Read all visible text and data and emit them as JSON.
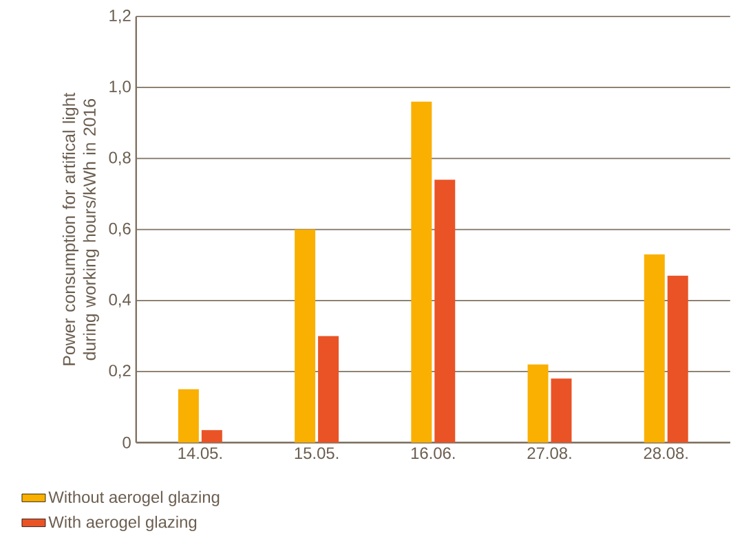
{
  "chart_data": {
    "type": "bar",
    "ylabel": "Power consumption for artifical light during working hours/kWh in 2016",
    "categories": [
      "14.05.",
      "15.05.",
      "16.06.",
      "27.08.",
      "28.08."
    ],
    "series": [
      {
        "name": "Without aerogel glazing",
        "color": "#f9b000",
        "values": [
          0.15,
          0.6,
          0.96,
          0.22,
          0.53
        ]
      },
      {
        "name": "With aerogel glazing",
        "color": "#e95325",
        "values": [
          0.035,
          0.3,
          0.74,
          0.18,
          0.47
        ]
      }
    ],
    "ylim": [
      0,
      1.2
    ],
    "yticks": [
      0,
      {
        "value": 0.2,
        "label": "0,2"
      },
      {
        "value": 0.4,
        "label": "0,4"
      },
      {
        "value": 0.6,
        "label": "0,6"
      },
      {
        "value": 0.8,
        "label": "0,8"
      },
      {
        "value": 1.0,
        "label": "1,0"
      },
      {
        "value": 1.2,
        "label": "1,2"
      }
    ],
    "grid": "y",
    "legend": "bottom left"
  }
}
